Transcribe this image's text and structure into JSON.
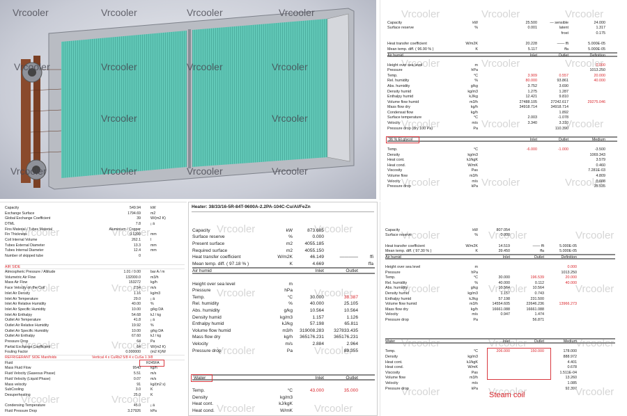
{
  "watermark": "Vrcooler",
  "colors": {
    "highlight": "#d9262c",
    "fins": "#5cc4b4",
    "copper": "#8a4a2c"
  },
  "sheet1": {
    "rows": [
      [
        "Capacity",
        "kW",
        "25.500",
        "— sensible",
        "24.000"
      ],
      [
        "Surface reserve",
        "%",
        "0.001",
        "latent",
        "1.317"
      ],
      [
        "",
        "",
        "",
        "frost",
        "0.175"
      ],
      [],
      [
        "Heat transfer coefficient",
        "W/m2K",
        "20.228",
        "—— ffi",
        "5.000E-05"
      ],
      [
        "Mean temp. diff. ( 96.90 % )",
        "K",
        "5.117",
        "ffa",
        "5.000E-05"
      ],
      {
        "header": true,
        "cells": [
          "Air humid",
          "",
          "Inlet",
          "Outlet",
          "Definition"
        ]
      },
      [],
      {
        "cells": [
          "Height over sea level",
          "m",
          "",
          "",
          "0.000"
        ],
        "red": [
          4
        ]
      },
      [
        "Pressure",
        "hPa",
        "",
        "",
        "1013.250"
      ],
      {
        "cells": [
          "Temp.",
          "°C",
          "3.909",
          "0.557",
          "20.000"
        ],
        "red": [
          2,
          3,
          4
        ]
      },
      {
        "cells": [
          "Rel. humidity",
          "%",
          "80.000",
          "93.861",
          "40.000"
        ],
        "red": [
          2,
          4
        ]
      },
      [
        "Abs. humidity",
        "g/kg",
        "3.752",
        "3.690",
        ""
      ],
      [
        "Density humid",
        "kg/m3",
        "1.275",
        "1.287",
        ""
      ],
      [
        "Enthalpy humid",
        "kJ/kg",
        "12.421",
        "9.810",
        ""
      ],
      {
        "cells": [
          "Volume flow humid",
          "m3/h",
          "27488.105",
          "27242.617",
          "29275.046"
        ],
        "red": [
          4
        ]
      },
      [
        "Mass flow dry",
        "kg/h",
        "34918.714",
        "34918.714",
        ""
      ],
      [
        "Condensat flow",
        "kg/h",
        "",
        "1.892",
        ""
      ],
      [
        "Surface temperature",
        "°C",
        "2.003",
        "-1.078",
        ""
      ],
      [
        "Velocity",
        "m/s",
        "3.340",
        "3.310",
        ""
      ],
      [
        "Pressure drop (dry 100 Pa)",
        "Pa",
        "",
        "110.390",
        ""
      ],
      [],
      {
        "header": true,
        "boxed": true,
        "cells": [
          "36 % Et.glycol",
          "",
          "Inlet",
          "Outlet",
          "Medium"
        ]
      },
      [],
      {
        "cells": [
          "Temp.",
          "°C",
          "-6.000",
          "-1.000",
          "-3.500"
        ],
        "red": [
          2,
          3
        ]
      },
      [
        "Density",
        "kg/m3",
        "",
        "",
        "1069.343"
      ],
      [
        "Heat cont.",
        "kJ/kgK",
        "",
        "",
        "3.579"
      ],
      [
        "Heat cond.",
        "W/mK",
        "",
        "",
        "0.460"
      ],
      [
        "Viscosity",
        "Pas",
        "",
        "",
        "7.281E-03"
      ],
      [
        "Volume flow",
        "m3/h",
        "",
        "",
        "4.809"
      ],
      [
        "Velocity",
        "m/s",
        "",
        "",
        "0.608"
      ],
      [
        "Pressure drop",
        "kPa",
        "",
        "",
        "35.535"
      ]
    ]
  },
  "sheet2": {
    "rows": [
      [
        "Capacity",
        "549.94",
        "kW"
      ],
      [
        "Exchange Surface",
        "1794.69",
        "m2"
      ],
      [
        "Global Exchange Coefficient",
        "39",
        "W/(m2 K)"
      ],
      [
        "DTML",
        "7.8",
        "¡ ä"
      ],
      [
        "Fins Material / Tubes Material",
        "Aluminium / Copper",
        ""
      ],
      [
        "Fin Thickness",
        "0.1200",
        "mm"
      ],
      [
        "Coil Internal Volume",
        "262.1",
        "l"
      ],
      [
        "Tubes External Diameter",
        "13.3",
        "mm"
      ],
      [
        "Tubes Internal Diameter",
        "12.4",
        "mm"
      ],
      [
        "Number of skipped tube",
        "0",
        ""
      ],
      [],
      {
        "section": true,
        "cells": [
          "AIR SIDE",
          "",
          ""
        ],
        "red": [
          0
        ]
      },
      [
        "Atmospheric Pressure / Altitude",
        "1.01 / 0.00",
        "bar A / m"
      ],
      [
        "Volumetric Air Flow",
        "132000.0",
        "m3/h"
      ],
      [
        "Mass Air Flow",
        "153272",
        "kg/h"
      ],
      [
        "Face Velocity on the Coil",
        "2.54",
        "m/s"
      ],
      [
        "Inlet Air Density",
        "1.16",
        "kg/m3"
      ],
      [
        "Inlet Air Temperature",
        "29.0",
        "¡ ä"
      ],
      [
        "Inlet Air Relative Humidity",
        "40.00",
        "%"
      ],
      [
        "Inlet Air Specific Humidity",
        "10.00",
        "g/kg DA"
      ],
      [
        "Inlet Air Enthalpy",
        "54.68",
        "kJ / kg"
      ],
      [
        "Outlet Air Temperature",
        "41.8",
        "¡ ä"
      ],
      [
        "Outlet Air Relative Humidity",
        "19.92",
        "%"
      ],
      [
        "Outlet Air Specific Humidity",
        "10.00",
        "g/kg DA"
      ],
      [
        "Outlet Air Enthalpy",
        "67.60",
        "kJ / kg"
      ],
      [
        "Pressure Drop",
        "64",
        "Pa"
      ],
      [
        "Partial Exchange Coefficient",
        "64",
        "W/(m2 K)"
      ],
      [
        "Fouling Factor",
        "0.000000",
        "(m2 K)/W"
      ],
      {
        "section": true,
        "cells": [
          "REFRIGERANT SIDE     Manifolds",
          "Vertical 4 x CuRb2 5/8 4 x CuSa 1 3/8",
          ""
        ],
        "red": [
          0,
          1
        ]
      },
      {
        "cells": [
          "Fluid",
          "",
          "R245FA"
        ],
        "boxed": [
          2
        ]
      },
      [
        "Mass Fluid Flow",
        "9540",
        "kg/h"
      ],
      [
        "Fluid Velocity (Gaseous Phase)",
        "5.51",
        "m/s"
      ],
      [
        "Fluid Velocity (Liquid Phase)",
        "0.07",
        "m/s"
      ],
      [
        "Mass velocity",
        "91",
        "kg/(m2 s)"
      ],
      [
        "SubCooling",
        "3.0",
        "K"
      ],
      [
        "Desuperheating",
        "25.0",
        "K"
      ],
      [],
      [
        "Condensing Temperature",
        "45.0",
        "¡ ä"
      ],
      [
        "Fluid Pressure Drop",
        "3.27926",
        "kPa"
      ]
    ]
  },
  "sheet3": {
    "title": "Heater: 38/33/16-5R-84T-9600A-2.2PA-104C-Cu/Al/FeZn",
    "rows": [
      [],
      [
        "Capacity",
        "kW",
        "873.685",
        "",
        ""
      ],
      [
        "Surface reserve",
        "%",
        "0.000",
        "",
        ""
      ],
      [
        "Present surface",
        "m2",
        "4055.185",
        "",
        ""
      ],
      [
        "Required surface",
        "m2",
        "4055.150",
        "",
        ""
      ],
      [
        "Heat transfer coefficient",
        "W/m2K",
        "46.149",
        "————",
        "ffi"
      ],
      [
        "Mean temp. diff. ( 97.18 % )",
        "K",
        "4.669",
        "",
        "ffa"
      ],
      {
        "header": true,
        "cells": [
          "Air humid",
          "",
          "Inlet",
          "Outlet",
          ""
        ]
      },
      [],
      [
        "Height over sea level",
        "m",
        "",
        "",
        ""
      ],
      [
        "Pressure",
        "hPa",
        "",
        "",
        ""
      ],
      {
        "cells": [
          "Temp.",
          "°C",
          "30.000",
          "38.387",
          ""
        ],
        "red": [
          3
        ]
      },
      [
        "Rel. humidity",
        "%",
        "40.000",
        "25.105",
        ""
      ],
      [
        "Abs. humidity",
        "g/kg",
        "10.564",
        "10.564",
        ""
      ],
      [
        "Density humid",
        "kg/m3",
        "1.157",
        "1.126",
        ""
      ],
      [
        "Enthalpy humid",
        "kJ/kg",
        "57.198",
        "65.811",
        ""
      ],
      [
        "Volume flow humid",
        "m3/h",
        "319008.283",
        "327833.435",
        ""
      ],
      [
        "Mass flow dry",
        "kg/h",
        "365176.231",
        "365176.231",
        ""
      ],
      [
        "Velocity",
        "m/s",
        "2.884",
        "2.964",
        ""
      ],
      [
        "Pressure drop",
        "Pa",
        "",
        "89.355",
        ""
      ],
      [],
      [],
      [],
      {
        "header": true,
        "boxed": true,
        "cells": [
          "Water",
          "",
          "Inlet",
          "Outlet",
          ""
        ]
      },
      [],
      {
        "cells": [
          "Temp.",
          "°C",
          "43.000",
          "35.000",
          ""
        ],
        "red": [
          2,
          3
        ]
      },
      [
        "Density",
        "kg/m3",
        "",
        "",
        ""
      ],
      [
        "Heat cont.",
        "kJ/kgK",
        "",
        "",
        ""
      ],
      [
        "Heat cond.",
        "W/mK",
        "",
        "",
        ""
      ],
      [
        "Viscosity",
        "Pas",
        "",
        "",
        ""
      ],
      [
        "Volume flow",
        "m3/h",
        "",
        "",
        ""
      ]
    ]
  },
  "sheet4": {
    "annotation": "Steam coil",
    "rows": [
      [
        "Capacity",
        "kW",
        "807.054",
        "",
        ""
      ],
      [
        "Surface reserve",
        "%",
        "0.000",
        "",
        ""
      ],
      [],
      [
        "Heat transfer coefficient",
        "W/m2K",
        "14.519",
        "—— ffi",
        "5.000E-05"
      ],
      [
        "Mean temp. diff. ( 97.30 % )",
        "K",
        "39.450",
        "ffa",
        "5.000E-05"
      ],
      {
        "header": true,
        "cells": [
          "Air humid",
          "",
          "Inlet",
          "Outlet",
          "Definition"
        ]
      },
      [],
      {
        "cells": [
          "Height over sea level",
          "m",
          "",
          "",
          "0.000"
        ],
        "red": [
          4
        ]
      },
      [
        "Pressure",
        "hPa",
        "",
        "",
        "1013.250"
      ],
      {
        "cells": [
          "Temp.",
          "°C",
          "30.000",
          "196.539",
          "20.000"
        ],
        "red": [
          3,
          4
        ]
      },
      {
        "cells": [
          "Rel. humidity",
          "%",
          "40.000",
          "0.112",
          "40.000"
        ],
        "red": [
          4
        ]
      },
      [
        "Abs. humidity",
        "g/kg",
        "10.564",
        "10.564",
        ""
      ],
      [
        "Density humid",
        "kg/m3",
        "1.157",
        "0.743",
        ""
      ],
      [
        "Enthalpy humid",
        "kJ/kg",
        "57.198",
        "231.500",
        ""
      ],
      {
        "cells": [
          "Volume flow humid",
          "m3/h",
          "14554.605",
          "22646.236",
          "13966.273"
        ],
        "red": [
          4
        ]
      },
      [
        "Mass flow dry",
        "kg/h",
        "16661.088",
        "16661.088",
        ""
      ],
      [
        "Velocity",
        "m/s",
        "0.947",
        "1.474",
        ""
      ],
      [
        "Pressure drop",
        "Pa",
        "",
        "56.871",
        ""
      ],
      [],
      [],
      [],
      {
        "header": true,
        "cells": [
          "Water",
          "",
          "Inlet",
          "Outlet",
          "Medium"
        ]
      },
      [],
      {
        "cells": [
          "Temp.",
          "°C",
          "206.000",
          "150.000",
          "178.000"
        ],
        "red": [
          2,
          3
        ]
      },
      [
        "Density",
        "kg/m3",
        "",
        "",
        "888.972"
      ],
      [
        "Heat cont.",
        "kJ/kgK",
        "",
        "",
        "4.401"
      ],
      [
        "Heat cond.",
        "W/mK",
        "",
        "",
        "0.678"
      ],
      [
        "Viscosity",
        "Pas",
        "",
        "",
        "1.511E-04"
      ],
      [
        "Volume flow",
        "m3/h",
        "",
        "",
        "13.260"
      ],
      [
        "Velocity",
        "m/s",
        "",
        "",
        "1.085"
      ],
      [
        "Pressure drop",
        "kPa",
        "",
        "",
        "92.397"
      ]
    ]
  }
}
